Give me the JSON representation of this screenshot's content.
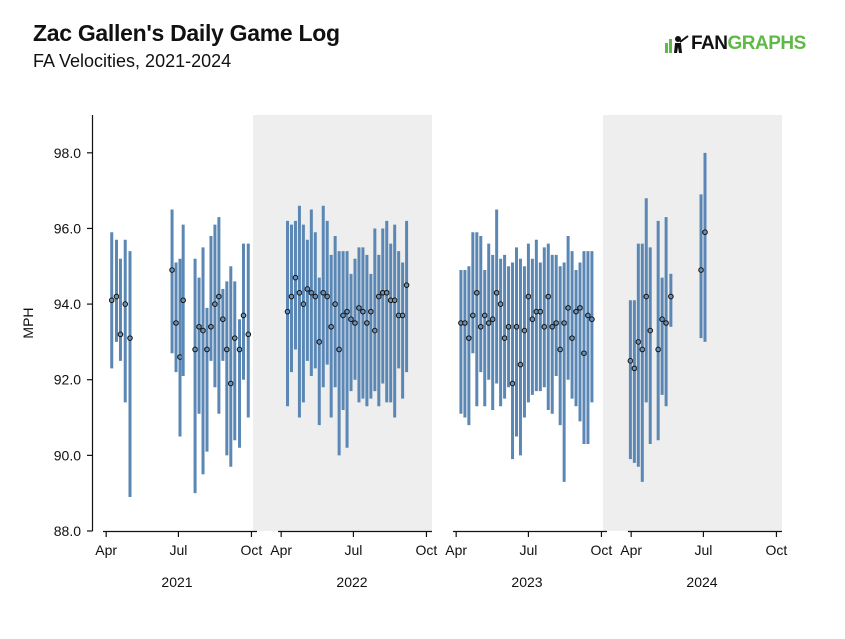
{
  "header": {
    "title": "Zac Gallen's Daily Game Log",
    "subtitle": "FA Velocities, 2021-2024"
  },
  "logo": {
    "part1": "FAN",
    "part2": "GRAPHS"
  },
  "colors": {
    "bar": "#5b87b5",
    "dot_fill": "#6c8fb0",
    "dot_stroke": "#111111",
    "panel_shade": "#eeeeee",
    "brand_green": "#5fb946"
  },
  "chart_data": {
    "type": "range-dot",
    "ylabel": "MPH",
    "ylim": [
      88,
      99
    ],
    "yticks": [
      88,
      90,
      92,
      94,
      96,
      98
    ],
    "ytick_labels": [
      "88.0",
      "90.0",
      "92.0",
      "94.0",
      "96.0",
      "98.0"
    ],
    "month_ticks": [
      "Apr",
      "Jul",
      "Oct"
    ],
    "grid": false,
    "panels": [
      {
        "year": "2021",
        "shaded": false,
        "games": [
          {
            "date": "2021-04-08",
            "min": 92.3,
            "max": 95.9,
            "avg": 94.1
          },
          {
            "date": "2021-04-14",
            "min": 93.0,
            "max": 95.7,
            "avg": 94.2
          },
          {
            "date": "2021-04-19",
            "min": 92.5,
            "max": 95.2,
            "avg": 93.2
          },
          {
            "date": "2021-04-25",
            "min": 91.4,
            "max": 95.7,
            "avg": 94.0
          },
          {
            "date": "2021-05-01",
            "min": 88.9,
            "max": 95.4,
            "avg": 93.1
          },
          {
            "date": "2021-06-23",
            "min": 92.7,
            "max": 96.5,
            "avg": 94.9
          },
          {
            "date": "2021-06-28",
            "min": 92.2,
            "max": 95.1,
            "avg": 93.5
          },
          {
            "date": "2021-07-03",
            "min": 90.5,
            "max": 95.2,
            "avg": 92.6
          },
          {
            "date": "2021-07-07",
            "min": 92.1,
            "max": 96.1,
            "avg": 94.1
          },
          {
            "date": "2021-07-22",
            "min": 89.0,
            "max": 95.2,
            "avg": 92.8
          },
          {
            "date": "2021-07-27",
            "min": 91.1,
            "max": 94.7,
            "avg": 93.4
          },
          {
            "date": "2021-08-01",
            "min": 89.5,
            "max": 95.5,
            "avg": 93.3
          },
          {
            "date": "2021-08-06",
            "min": 90.1,
            "max": 93.9,
            "avg": 92.8
          },
          {
            "date": "2021-08-11",
            "min": 92.5,
            "max": 95.8,
            "avg": 93.4
          },
          {
            "date": "2021-08-16",
            "min": 91.8,
            "max": 96.1,
            "avg": 94.0
          },
          {
            "date": "2021-08-21",
            "min": 91.1,
            "max": 96.3,
            "avg": 94.2
          },
          {
            "date": "2021-08-26",
            "min": 92.5,
            "max": 94.4,
            "avg": 93.6
          },
          {
            "date": "2021-08-31",
            "min": 90.0,
            "max": 94.6,
            "avg": 92.8
          },
          {
            "date": "2021-09-05",
            "min": 89.7,
            "max": 95.0,
            "avg": 91.9
          },
          {
            "date": "2021-09-10",
            "min": 90.4,
            "max": 94.6,
            "avg": 93.1
          },
          {
            "date": "2021-09-16",
            "min": 90.2,
            "max": 93.6,
            "avg": 92.8
          },
          {
            "date": "2021-09-21",
            "min": 92.0,
            "max": 95.6,
            "avg": 93.7
          },
          {
            "date": "2021-09-27",
            "min": 91.0,
            "max": 95.6,
            "avg": 93.2
          }
        ]
      },
      {
        "year": "2022",
        "shaded": true,
        "games": [
          {
            "date": "2022-04-09",
            "min": 91.3,
            "max": 96.2,
            "avg": 93.8
          },
          {
            "date": "2022-04-14",
            "min": 92.2,
            "max": 96.1,
            "avg": 94.2
          },
          {
            "date": "2022-04-19",
            "min": 92.8,
            "max": 96.2,
            "avg": 94.7
          },
          {
            "date": "2022-04-24",
            "min": 91.0,
            "max": 96.6,
            "avg": 94.3
          },
          {
            "date": "2022-04-29",
            "min": 91.4,
            "max": 96.1,
            "avg": 94.0
          },
          {
            "date": "2022-05-04",
            "min": 92.5,
            "max": 95.7,
            "avg": 94.4
          },
          {
            "date": "2022-05-09",
            "min": 92.1,
            "max": 96.5,
            "avg": 94.3
          },
          {
            "date": "2022-05-14",
            "min": 92.3,
            "max": 95.9,
            "avg": 94.2
          },
          {
            "date": "2022-05-19",
            "min": 90.8,
            "max": 94.7,
            "avg": 93.0
          },
          {
            "date": "2022-05-24",
            "min": 91.8,
            "max": 96.6,
            "avg": 94.3
          },
          {
            "date": "2022-05-29",
            "min": 92.4,
            "max": 96.2,
            "avg": 94.2
          },
          {
            "date": "2022-06-03",
            "min": 91.0,
            "max": 95.3,
            "avg": 93.4
          },
          {
            "date": "2022-06-08",
            "min": 91.8,
            "max": 95.8,
            "avg": 94.0
          },
          {
            "date": "2022-06-13",
            "min": 90.0,
            "max": 95.4,
            "avg": 92.8
          },
          {
            "date": "2022-06-18",
            "min": 91.2,
            "max": 95.4,
            "avg": 93.7
          },
          {
            "date": "2022-06-23",
            "min": 90.2,
            "max": 95.4,
            "avg": 93.8
          },
          {
            "date": "2022-06-28",
            "min": 91.7,
            "max": 94.8,
            "avg": 93.6
          },
          {
            "date": "2022-07-03",
            "min": 92.0,
            "max": 95.2,
            "avg": 93.5
          },
          {
            "date": "2022-07-08",
            "min": 91.4,
            "max": 95.5,
            "avg": 93.9
          },
          {
            "date": "2022-07-13",
            "min": 91.5,
            "max": 95.5,
            "avg": 93.8
          },
          {
            "date": "2022-07-18",
            "min": 91.3,
            "max": 95.3,
            "avg": 93.5
          },
          {
            "date": "2022-07-23",
            "min": 91.5,
            "max": 94.8,
            "avg": 93.8
          },
          {
            "date": "2022-07-28",
            "min": 91.7,
            "max": 96.0,
            "avg": 93.3
          },
          {
            "date": "2022-08-02",
            "min": 91.3,
            "max": 95.3,
            "avg": 94.2
          },
          {
            "date": "2022-08-07",
            "min": 91.9,
            "max": 96.0,
            "avg": 94.3
          },
          {
            "date": "2022-08-12",
            "min": 91.4,
            "max": 96.2,
            "avg": 94.3
          },
          {
            "date": "2022-08-17",
            "min": 91.4,
            "max": 95.6,
            "avg": 94.1
          },
          {
            "date": "2022-08-22",
            "min": 91.0,
            "max": 96.1,
            "avg": 94.1
          },
          {
            "date": "2022-08-27",
            "min": 92.3,
            "max": 95.4,
            "avg": 93.7
          },
          {
            "date": "2022-09-01",
            "min": 91.5,
            "max": 95.1,
            "avg": 93.7
          },
          {
            "date": "2022-09-06",
            "min": 92.2,
            "max": 96.2,
            "avg": 94.5
          }
        ]
      },
      {
        "year": "2023",
        "shaded": false,
        "games": [
          {
            "date": "2023-04-07",
            "min": 91.1,
            "max": 94.9,
            "avg": 93.5
          },
          {
            "date": "2023-04-12",
            "min": 91.0,
            "max": 94.9,
            "avg": 93.5
          },
          {
            "date": "2023-04-17",
            "min": 90.8,
            "max": 95.0,
            "avg": 93.1
          },
          {
            "date": "2023-04-22",
            "min": 92.7,
            "max": 95.9,
            "avg": 93.7
          },
          {
            "date": "2023-04-27",
            "min": 91.3,
            "max": 95.9,
            "avg": 94.3
          },
          {
            "date": "2023-05-02",
            "min": 92.2,
            "max": 95.8,
            "avg": 93.4
          },
          {
            "date": "2023-05-07",
            "min": 91.3,
            "max": 94.9,
            "avg": 93.7
          },
          {
            "date": "2023-05-12",
            "min": 92.0,
            "max": 95.6,
            "avg": 93.5
          },
          {
            "date": "2023-05-17",
            "min": 91.2,
            "max": 95.3,
            "avg": 93.6
          },
          {
            "date": "2023-05-22",
            "min": 91.9,
            "max": 96.5,
            "avg": 94.3
          },
          {
            "date": "2023-05-27",
            "min": 91.3,
            "max": 95.2,
            "avg": 94.0
          },
          {
            "date": "2023-06-01",
            "min": 91.5,
            "max": 95.3,
            "avg": 93.1
          },
          {
            "date": "2023-06-06",
            "min": 91.8,
            "max": 95.0,
            "avg": 93.4
          },
          {
            "date": "2023-06-11",
            "min": 89.9,
            "max": 95.1,
            "avg": 91.9
          },
          {
            "date": "2023-06-16",
            "min": 90.5,
            "max": 95.5,
            "avg": 93.4
          },
          {
            "date": "2023-06-21",
            "min": 90.0,
            "max": 95.2,
            "avg": 92.4
          },
          {
            "date": "2023-06-26",
            "min": 91.0,
            "max": 95.0,
            "avg": 93.3
          },
          {
            "date": "2023-07-01",
            "min": 91.4,
            "max": 95.6,
            "avg": 94.2
          },
          {
            "date": "2023-07-06",
            "min": 91.6,
            "max": 95.2,
            "avg": 93.6
          },
          {
            "date": "2023-07-11",
            "min": 91.7,
            "max": 95.7,
            "avg": 93.8
          },
          {
            "date": "2023-07-16",
            "min": 91.7,
            "max": 95.1,
            "avg": 93.8
          },
          {
            "date": "2023-07-21",
            "min": 91.8,
            "max": 95.5,
            "avg": 93.4
          },
          {
            "date": "2023-07-26",
            "min": 91.2,
            "max": 95.6,
            "avg": 94.2
          },
          {
            "date": "2023-07-31",
            "min": 91.1,
            "max": 95.3,
            "avg": 93.4
          },
          {
            "date": "2023-08-05",
            "min": 92.1,
            "max": 95.3,
            "avg": 93.5
          },
          {
            "date": "2023-08-10",
            "min": 90.8,
            "max": 95.0,
            "avg": 92.8
          },
          {
            "date": "2023-08-15",
            "min": 89.3,
            "max": 95.1,
            "avg": 93.5
          },
          {
            "date": "2023-08-20",
            "min": 92.0,
            "max": 95.8,
            "avg": 93.9
          },
          {
            "date": "2023-08-25",
            "min": 91.5,
            "max": 95.4,
            "avg": 93.1
          },
          {
            "date": "2023-08-30",
            "min": 91.3,
            "max": 94.9,
            "avg": 93.8
          },
          {
            "date": "2023-09-04",
            "min": 90.9,
            "max": 95.1,
            "avg": 93.9
          },
          {
            "date": "2023-09-09",
            "min": 90.3,
            "max": 95.4,
            "avg": 92.7
          },
          {
            "date": "2023-09-14",
            "min": 90.3,
            "max": 95.4,
            "avg": 93.7
          },
          {
            "date": "2023-09-19",
            "min": 91.4,
            "max": 95.4,
            "avg": 93.6
          }
        ]
      },
      {
        "year": "2024",
        "shaded": true,
        "games": [
          {
            "date": "2024-03-31",
            "min": 89.9,
            "max": 94.1,
            "avg": 92.5
          },
          {
            "date": "2024-04-05",
            "min": 89.8,
            "max": 94.1,
            "avg": 92.3
          },
          {
            "date": "2024-04-10",
            "min": 89.7,
            "max": 95.6,
            "avg": 93.0
          },
          {
            "date": "2024-04-15",
            "min": 89.3,
            "max": 95.6,
            "avg": 92.8
          },
          {
            "date": "2024-04-20",
            "min": 91.4,
            "max": 96.8,
            "avg": 94.2
          },
          {
            "date": "2024-04-25",
            "min": 90.3,
            "max": 95.5,
            "avg": 93.3
          },
          {
            "date": "2024-05-05",
            "min": 90.4,
            "max": 96.2,
            "avg": 92.8
          },
          {
            "date": "2024-05-10",
            "min": 91.6,
            "max": 94.7,
            "avg": 93.6
          },
          {
            "date": "2024-05-15",
            "min": 91.3,
            "max": 96.3,
            "avg": 93.5
          },
          {
            "date": "2024-05-21",
            "min": 93.4,
            "max": 94.8,
            "avg": 94.2
          },
          {
            "date": "2024-06-28",
            "min": 93.1,
            "max": 96.9,
            "avg": 94.9
          },
          {
            "date": "2024-07-03",
            "min": 93.0,
            "max": 98.0,
            "avg": 95.9
          }
        ]
      }
    ]
  }
}
